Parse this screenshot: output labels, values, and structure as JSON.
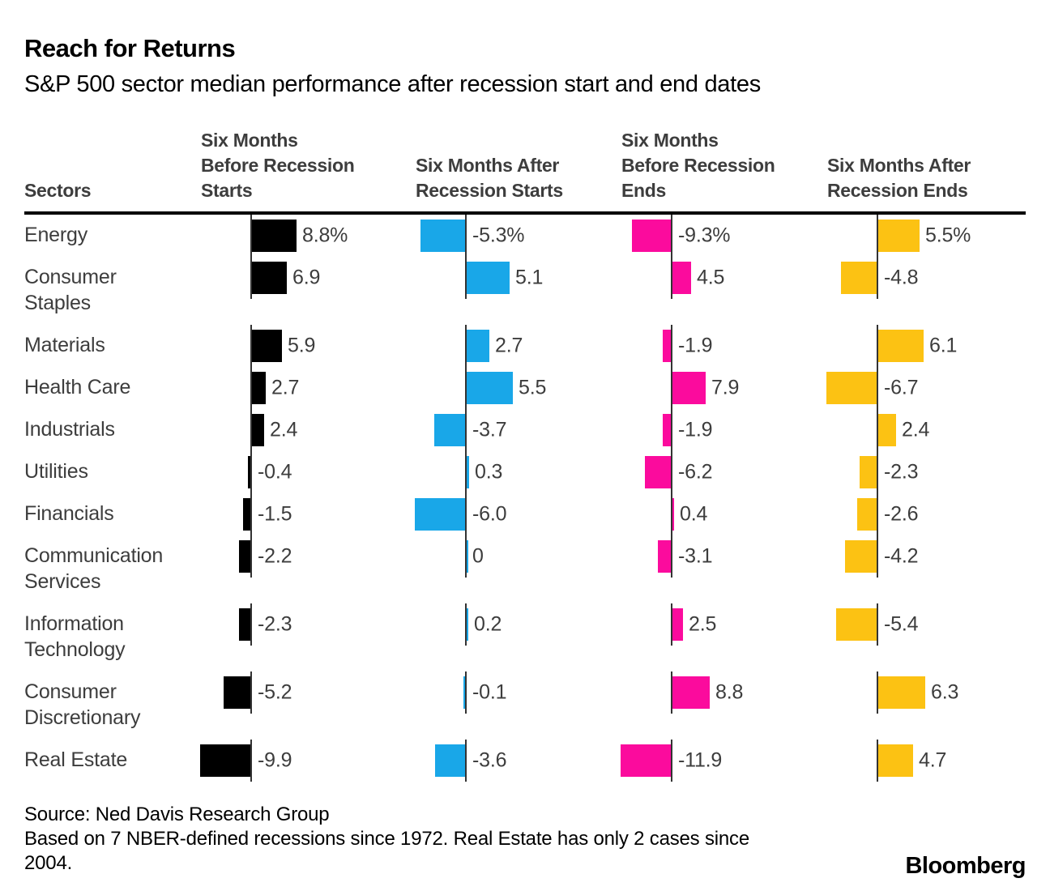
{
  "title": "Reach for Returns",
  "subtitle": "S&P 500 sector median performance after recession start and end dates",
  "table": {
    "sector_header": "Sectors",
    "columns": [
      {
        "label_lines": [
          "Six Months",
          "Before Recession",
          "Starts"
        ],
        "color": "#000000"
      },
      {
        "label_lines": [
          "Six Months After",
          "Recession Starts"
        ],
        "color": "#19a7e8"
      },
      {
        "label_lines": [
          "Six Months",
          "Before Recession",
          "Ends"
        ],
        "color": "#fb0b9d"
      },
      {
        "label_lines": [
          "Six Months After",
          "Recession Ends"
        ],
        "color": "#fcc213"
      }
    ]
  },
  "chart_data": {
    "type": "bar",
    "orientation": "horizontal",
    "title": "Reach for Returns",
    "subtitle": "S&P 500 sector median performance after recession start and end dates",
    "categories": [
      "Energy",
      "Consumer Staples",
      "Materials",
      "Health Care",
      "Industrials",
      "Utilities",
      "Financials",
      "Communication Services",
      "Information Technology",
      "Consumer Discretionary",
      "Real Estate"
    ],
    "category_lines": [
      [
        "Energy"
      ],
      [
        "Consumer",
        "Staples"
      ],
      [
        "Materials"
      ],
      [
        "Health Care"
      ],
      [
        "Industrials"
      ],
      [
        "Utilities"
      ],
      [
        "Financials"
      ],
      [
        "Communication",
        "Services"
      ],
      [
        "Information",
        "Technology"
      ],
      [
        "Consumer",
        "Discretionary"
      ],
      [
        "Real Estate"
      ]
    ],
    "series": [
      {
        "name": "Six Months Before Recession Starts",
        "color": "#000000",
        "values": [
          8.8,
          6.9,
          5.9,
          2.7,
          2.4,
          -0.4,
          -1.5,
          -2.2,
          -2.3,
          -5.2,
          -9.9
        ],
        "labels": [
          "8.8%",
          "6.9",
          "5.9",
          "2.7",
          "2.4",
          "-0.4",
          "-1.5",
          "-2.2",
          "-2.3",
          "-5.2",
          "-9.9"
        ]
      },
      {
        "name": "Six Months After Recession Starts",
        "color": "#19a7e8",
        "values": [
          -5.3,
          5.1,
          2.7,
          5.5,
          -3.7,
          0.3,
          -6.0,
          0,
          0.2,
          -0.1,
          -3.6
        ],
        "labels": [
          "-5.3%",
          "5.1",
          "2.7",
          "5.5",
          "-3.7",
          "0.3",
          "-6.0",
          "0",
          "0.2",
          "-0.1",
          "-3.6"
        ]
      },
      {
        "name": "Six Months Before Recession Ends",
        "color": "#fb0b9d",
        "values": [
          -9.3,
          4.5,
          -1.9,
          7.9,
          -1.9,
          -6.2,
          0.4,
          -3.1,
          2.5,
          8.8,
          -11.9
        ],
        "labels": [
          "-9.3%",
          "4.5",
          "-1.9",
          "7.9",
          "-1.9",
          "-6.2",
          "0.4",
          "-3.1",
          "2.5",
          "8.8",
          "-11.9"
        ]
      },
      {
        "name": "Six Months After Recession Ends",
        "color": "#fcc213",
        "values": [
          5.5,
          -4.8,
          6.1,
          -6.7,
          2.4,
          -2.3,
          -2.6,
          -4.2,
          -5.4,
          6.3,
          4.7
        ],
        "labels": [
          "5.5%",
          "-4.8",
          "6.1",
          "-6.7",
          "2.4",
          "-2.3",
          "-2.6",
          "-4.2",
          "-5.4",
          "6.3",
          "4.7"
        ]
      }
    ],
    "baseline": 0,
    "grid": false,
    "legend_position": "column-headers"
  },
  "footer": {
    "source": "Source: Ned Davis Research Group",
    "note_lines": [
      "Based on 7 NBER-defined recessions since 1972. Real Estate has only 2 cases since",
      "2004."
    ],
    "brand": "Bloomberg"
  }
}
